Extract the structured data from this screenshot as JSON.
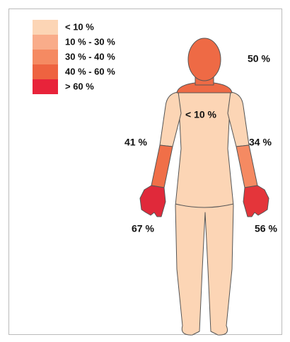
{
  "legend": [
    {
      "label": "< 10 %",
      "color": "#fcd5b5"
    },
    {
      "label": "10 % - 30 %",
      "color": "#f9ac8a"
    },
    {
      "label": "30 % - 40 %",
      "color": "#f58a62"
    },
    {
      "label": "40 % - 60 %",
      "color": "#ee6340"
    },
    {
      "label": "> 60 %",
      "color": "#e8233a"
    }
  ],
  "regions": [
    {
      "label": "50 %",
      "color": "#ee6a45"
    },
    {
      "label": "< 10 %",
      "color": "#fcd5b5"
    },
    {
      "label": "41 %",
      "color": "#f06f48"
    },
    {
      "label": "34 %",
      "color": "#f58a62"
    },
    {
      "label": "67 %",
      "color": "#e0293a"
    },
    {
      "label": "56 %",
      "color": "#e4353a"
    }
  ]
}
